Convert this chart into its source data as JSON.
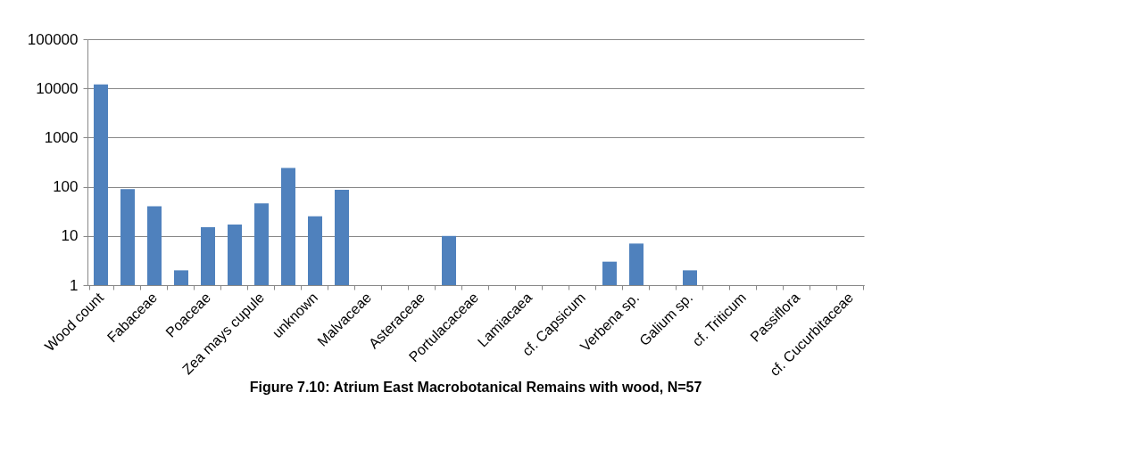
{
  "chart_data": {
    "type": "bar",
    "title": "Figure 7.10: Atrium East Macrobotanical Remains with wood, N=57",
    "categories": [
      "Wood count",
      null,
      "Fabaceae",
      null,
      "Poaceae",
      null,
      "Zea mays cupule",
      null,
      "unknown",
      null,
      "Malvaceae",
      null,
      "Asteraceae",
      null,
      "Portulacaceae",
      null,
      "Lamiacaea",
      null,
      "cf. Capsicum",
      null,
      "Verbena sp.",
      null,
      "Galium sp.",
      null,
      "cf. Triticum",
      null,
      "Passiflora",
      null,
      "cf. Cucurbitaceae"
    ],
    "values": [
      12000,
      90,
      40,
      2,
      15,
      17,
      46,
      240,
      25,
      87,
      null,
      null,
      null,
      10,
      null,
      null,
      null,
      null,
      null,
      3,
      7,
      null,
      2,
      null,
      null,
      null,
      null,
      null,
      null
    ],
    "color": "#4f81bd",
    "log": true,
    "ylim": [
      1,
      100000
    ],
    "yticks": [
      1,
      10,
      100,
      1000,
      10000,
      100000
    ],
    "grid": "y"
  }
}
